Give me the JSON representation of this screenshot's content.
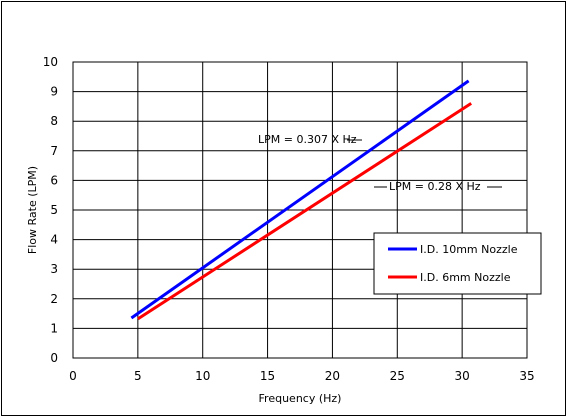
{
  "chart_data": {
    "type": "line",
    "title": "",
    "xlabel": "Frequency (Hz)",
    "ylabel": "Flow Rate (LPM)",
    "xlim": [
      0,
      35
    ],
    "ylim": [
      0,
      10
    ],
    "xticks": [
      "0",
      "5",
      "10",
      "15",
      "20",
      "25",
      "30",
      "35"
    ],
    "yticks": [
      "0",
      "1",
      "2",
      "3",
      "4",
      "5",
      "6",
      "7",
      "8",
      "9",
      "10"
    ],
    "grid": true,
    "legend_position": "right",
    "series": [
      {
        "name": "I.D. 10mm Nozzle",
        "color": "#0000ff",
        "x": [
          4.5,
          30.5
        ],
        "y": [
          1.35,
          9.36
        ]
      },
      {
        "name": "I.D. 6mm Nozzle",
        "color": "#ff0000",
        "x": [
          5,
          30.7
        ],
        "y": [
          1.32,
          8.6
        ]
      }
    ],
    "annotations": [
      {
        "text": "LPM = 0.307 X Hz"
      },
      {
        "text": "LPM = 0.28 X Hz"
      }
    ]
  }
}
